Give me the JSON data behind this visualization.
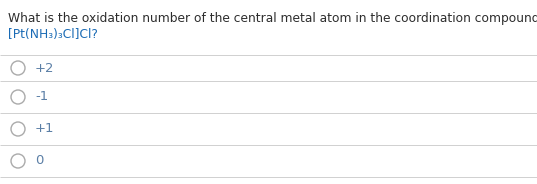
{
  "question_line1": "What is the oxidation number of the central metal atom in the coordination compound",
  "question_line2": "[Pt(NH₃)₃Cl]Cl?",
  "options": [
    "+2",
    "-1",
    "+1",
    "0"
  ],
  "bg_color": "#ffffff",
  "question_color": "#2d2d2d",
  "formula_color": "#1a6bb5",
  "option_color": "#5b7fa6",
  "circle_color": "#aaaaaa",
  "line_color": "#d0d0d0",
  "font_size_question": 8.8,
  "font_size_formula": 8.8,
  "font_size_options": 9.5,
  "fig_width": 5.37,
  "fig_height": 1.84,
  "dpi": 100
}
